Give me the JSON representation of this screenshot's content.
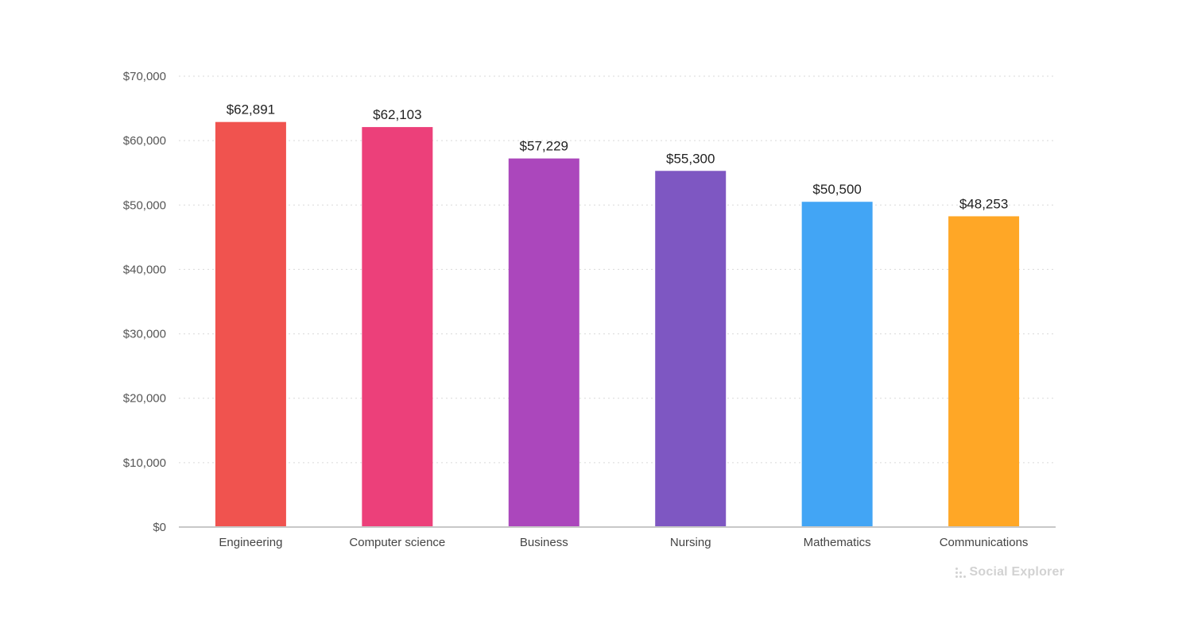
{
  "chart_data": {
    "type": "bar",
    "title": "",
    "xlabel": "",
    "ylabel": "",
    "categories": [
      "Engineering",
      "Computer science",
      "Business",
      "Nursing",
      "Mathematics",
      "Communications"
    ],
    "values": [
      62891,
      62103,
      57229,
      55300,
      50500,
      48253
    ],
    "data_labels": [
      "$62,891",
      "$62,103",
      "$57,229",
      "$55,300",
      "$50,500",
      "$48,253"
    ],
    "colors": [
      "#f0534f",
      "#ec407a",
      "#ab47bc",
      "#7e57c2",
      "#42a5f5",
      "#ffa726"
    ],
    "ylim": [
      0,
      70000
    ],
    "y_ticks": [
      0,
      10000,
      20000,
      30000,
      40000,
      50000,
      60000,
      70000
    ],
    "y_tick_labels": [
      "$0",
      "$10,000",
      "$20,000",
      "$30,000",
      "$40,000",
      "$50,000",
      "$60,000",
      "$70,000"
    ],
    "grid": true,
    "legend": "none"
  },
  "branding": {
    "logo_text": "Social Explorer",
    "logo_icon": "dots-grid-icon",
    "logo_color": "#d2d2d2"
  }
}
